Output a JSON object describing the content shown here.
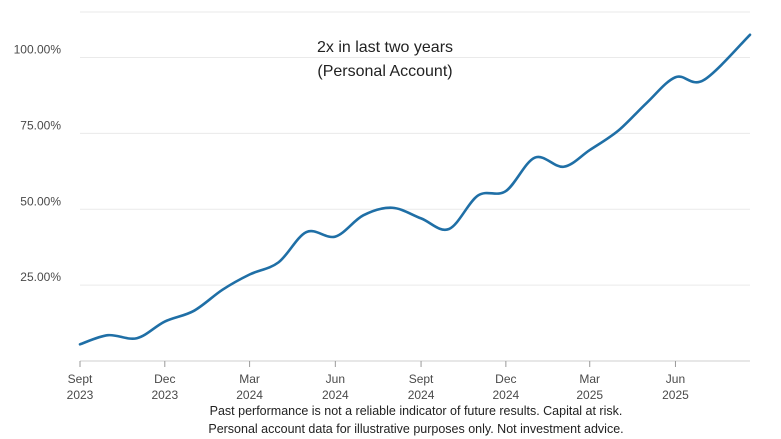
{
  "chart_data": {
    "type": "line",
    "title": "2x in last two years",
    "subtitle": "(Personal Account)",
    "xlabel": "",
    "ylabel": "",
    "ylim": [
      0,
      115
    ],
    "grid": true,
    "y_ticks": [
      {
        "value": 25,
        "label": "25.00%"
      },
      {
        "value": 50,
        "label": "50.00%"
      },
      {
        "value": 75,
        "label": "75.00%"
      },
      {
        "value": 100,
        "label": "100.00%"
      }
    ],
    "x_ticks": [
      {
        "date": "2023-09-01",
        "line1": "Sept",
        "line2": "2023"
      },
      {
        "date": "2023-12-01",
        "line1": "Dec",
        "line2": "2023"
      },
      {
        "date": "2024-03-01",
        "line1": "Mar",
        "line2": "2024"
      },
      {
        "date": "2024-06-01",
        "line1": "Jun",
        "line2": "2024"
      },
      {
        "date": "2024-09-01",
        "line1": "Sept",
        "line2": "2024"
      },
      {
        "date": "2024-12-01",
        "line1": "Dec",
        "line2": "2024"
      },
      {
        "date": "2025-03-01",
        "line1": "Mar",
        "line2": "2025"
      },
      {
        "date": "2025-06-01",
        "line1": "Jun",
        "line2": "2025"
      }
    ],
    "x_range": [
      "2023-09-01",
      "2025-08-20"
    ],
    "series": [
      {
        "name": "",
        "color": "#1f6fa6",
        "points": [
          {
            "x": "2023-09-01",
            "y": 5.5
          },
          {
            "x": "2023-10-01",
            "y": 8.5
          },
          {
            "x": "2023-11-01",
            "y": 7.5
          },
          {
            "x": "2023-12-01",
            "y": 13
          },
          {
            "x": "2024-01-01",
            "y": 16.5
          },
          {
            "x": "2024-02-01",
            "y": 23.5
          },
          {
            "x": "2024-03-01",
            "y": 28.5
          },
          {
            "x": "2024-04-01",
            "y": 32.5
          },
          {
            "x": "2024-05-01",
            "y": 42.5
          },
          {
            "x": "2024-06-01",
            "y": 41
          },
          {
            "x": "2024-07-01",
            "y": 48
          },
          {
            "x": "2024-08-01",
            "y": 50.5
          },
          {
            "x": "2024-09-01",
            "y": 47
          },
          {
            "x": "2024-10-01",
            "y": 43.5
          },
          {
            "x": "2024-11-01",
            "y": 54.5
          },
          {
            "x": "2024-12-01",
            "y": 56
          },
          {
            "x": "2025-01-01",
            "y": 67
          },
          {
            "x": "2025-02-01",
            "y": 64
          },
          {
            "x": "2025-03-01",
            "y": 69.5
          },
          {
            "x": "2025-04-01",
            "y": 76
          },
          {
            "x": "2025-05-01",
            "y": 85
          },
          {
            "x": "2025-06-01",
            "y": 93.5
          },
          {
            "x": "2025-07-01",
            "y": 92.5
          },
          {
            "x": "2025-08-20",
            "y": 107.5
          }
        ]
      }
    ],
    "footnotes": [
      "Past performance is not a reliable indicator of future results. Capital at risk.",
      "Personal account data for illustrative purposes only. Not investment advice."
    ]
  }
}
